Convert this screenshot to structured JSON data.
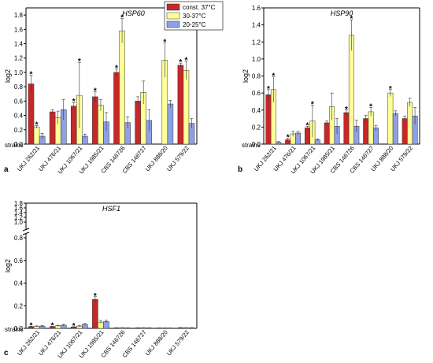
{
  "colors": {
    "c37": "#c62828",
    "c30": "#ffff99",
    "c20": "#8da0e8"
  },
  "legend": [
    {
      "label": "const. 37°C",
      "color": "#c62828"
    },
    {
      "label": "30-37°C",
      "color": "#ffff99"
    },
    {
      "label": "20-25°C",
      "color": "#8da0e8"
    }
  ],
  "strains_label": "strains",
  "chart_data": [
    {
      "type": "bar",
      "panel": "a",
      "title": "HSP60",
      "ylabel": "log2",
      "ylim": [
        0,
        1.9
      ],
      "yticks": [
        0,
        0.2,
        0.4,
        0.6,
        0.8,
        1.0,
        1.2,
        1.4,
        1.6,
        1.8
      ],
      "ytick_labels": [
        "0.0",
        "0.2",
        "0.4",
        "0.6",
        "0.8",
        "1.0",
        "1.2",
        "1.4",
        "1.6",
        "1.8"
      ],
      "categories": [
        "UKJ 262/21",
        "UKJ 476/21",
        "UKJ 1067/21",
        "UKJ 1985/21",
        "CBS 146726",
        "CBS 146727",
        "UKJ 888/20",
        "UKJ 579/22"
      ],
      "series": [
        {
          "name": "const. 37°C",
          "values": [
            0.84,
            0.45,
            0.53,
            0.66,
            1.0,
            0.6,
            0,
            1.1
          ],
          "errors": [
            0.12,
            0.03,
            0.05,
            0.07,
            0.05,
            0.06,
            0,
            0.03
          ],
          "stars": [
            true,
            false,
            true,
            true,
            true,
            false,
            false,
            true
          ]
        },
        {
          "name": "30-37°C",
          "values": [
            0.24,
            0.37,
            0.68,
            0.54,
            1.58,
            0.72,
            1.17,
            1.03
          ],
          "errors": [
            0.02,
            0.09,
            0.46,
            0.08,
            0.17,
            0.16,
            0.24,
            0.13
          ],
          "stars": [
            true,
            false,
            true,
            false,
            true,
            false,
            true,
            true
          ]
        },
        {
          "name": "20-25°C",
          "values": [
            0.11,
            0.48,
            0.11,
            0.31,
            0.3,
            0.33,
            0.56,
            0.29
          ],
          "errors": [
            0.04,
            0.14,
            0.03,
            0.13,
            0.08,
            0.15,
            0.05,
            0.07
          ],
          "stars": [
            false,
            false,
            false,
            false,
            false,
            false,
            false,
            false
          ]
        }
      ]
    },
    {
      "type": "bar",
      "panel": "b",
      "title": "HSP90",
      "ylabel": "log2",
      "ylim": [
        0,
        1.6
      ],
      "yticks": [
        0,
        0.2,
        0.4,
        0.6,
        0.8,
        1.0,
        1.2,
        1.4,
        1.6
      ],
      "ytick_labels": [
        "0.0",
        "0.2",
        "0.4",
        "0.6",
        "0.8",
        "1.0",
        "1.2",
        "1.4",
        "1.6"
      ],
      "categories": [
        "UKJ 262/21",
        "UKJ 476/21",
        "UKJ 1067/21",
        "UKJ 1985/21",
        "CBS 146726",
        "CBS 146727",
        "UKJ 888/20",
        "UKJ 579/22"
      ],
      "series": [
        {
          "name": "const. 37°C",
          "values": [
            0.58,
            0.05,
            0.19,
            0.25,
            0.37,
            0.3,
            0,
            0.3
          ],
          "errors": [
            0.06,
            0.02,
            0.02,
            0.02,
            0.03,
            0.04,
            0,
            0.03
          ],
          "stars": [
            true,
            true,
            true,
            false,
            true,
            false,
            false,
            false
          ]
        },
        {
          "name": "30-37°C",
          "values": [
            0.64,
            0.12,
            0.27,
            0.44,
            1.28,
            0.38,
            0.6,
            0.49
          ],
          "errors": [
            0.15,
            0.03,
            0.19,
            0.16,
            0.18,
            0.05,
            0.04,
            0.05
          ],
          "stars": [
            true,
            false,
            true,
            false,
            true,
            true,
            true,
            false
          ]
        },
        {
          "name": "20-25°C",
          "values": [
            0.02,
            0.13,
            0.05,
            0.21,
            0.21,
            0.19,
            0.36,
            0.33
          ],
          "errors": [
            0.01,
            0.02,
            0.01,
            0.09,
            0.07,
            0.03,
            0.03,
            0.1
          ],
          "stars": [
            false,
            false,
            false,
            false,
            false,
            false,
            false,
            false
          ]
        }
      ]
    },
    {
      "type": "bar",
      "panel": "c",
      "title": "HSF1",
      "ylabel": "log2",
      "ylim": [
        0,
        1.8
      ],
      "axis_break": true,
      "yticks": [
        0,
        0.2,
        0.4,
        0.6,
        0.8,
        1.0,
        1.2,
        1.4,
        1.6,
        1.8
      ],
      "ytick_labels": [
        "0.0",
        "0.2",
        "0.4",
        "0.6",
        "0.8",
        "1.0",
        "1.2",
        "1.4",
        "1.6",
        "1.8"
      ],
      "categories": [
        "UKJ 262/21",
        "UKJ 476/21",
        "UKJ 1067/21",
        "UKJ 1985/21",
        "CBS 146726",
        "CBS 146727",
        "UKJ 888/20",
        "UKJ 579/22"
      ],
      "series": [
        {
          "name": "const. 37°C",
          "values": [
            0.015,
            0.015,
            0.012,
            0.255,
            0.005,
            0.005,
            0.004,
            0.006
          ],
          "errors": [
            0.003,
            0.003,
            0.003,
            0.025,
            0.001,
            0.001,
            0.001,
            0.001
          ],
          "stars": [
            true,
            true,
            true,
            true,
            false,
            false,
            false,
            false
          ]
        },
        {
          "name": "30-37°C",
          "values": [
            0.018,
            0.022,
            0.02,
            0.055,
            0.006,
            0.006,
            0.004,
            0.006
          ],
          "errors": [
            0.004,
            0.005,
            0.005,
            0.015,
            0.001,
            0.001,
            0.001,
            0.001
          ],
          "stars": [
            false,
            false,
            false,
            false,
            false,
            false,
            false,
            false
          ]
        },
        {
          "name": "20-25°C",
          "values": [
            0.02,
            0.028,
            0.035,
            0.06,
            0.005,
            0.005,
            0.003,
            0.006
          ],
          "errors": [
            0.005,
            0.007,
            0.008,
            0.012,
            0.001,
            0.001,
            0.001,
            0.001
          ],
          "stars": [
            false,
            false,
            false,
            false,
            false,
            false,
            false,
            false
          ]
        }
      ]
    }
  ]
}
